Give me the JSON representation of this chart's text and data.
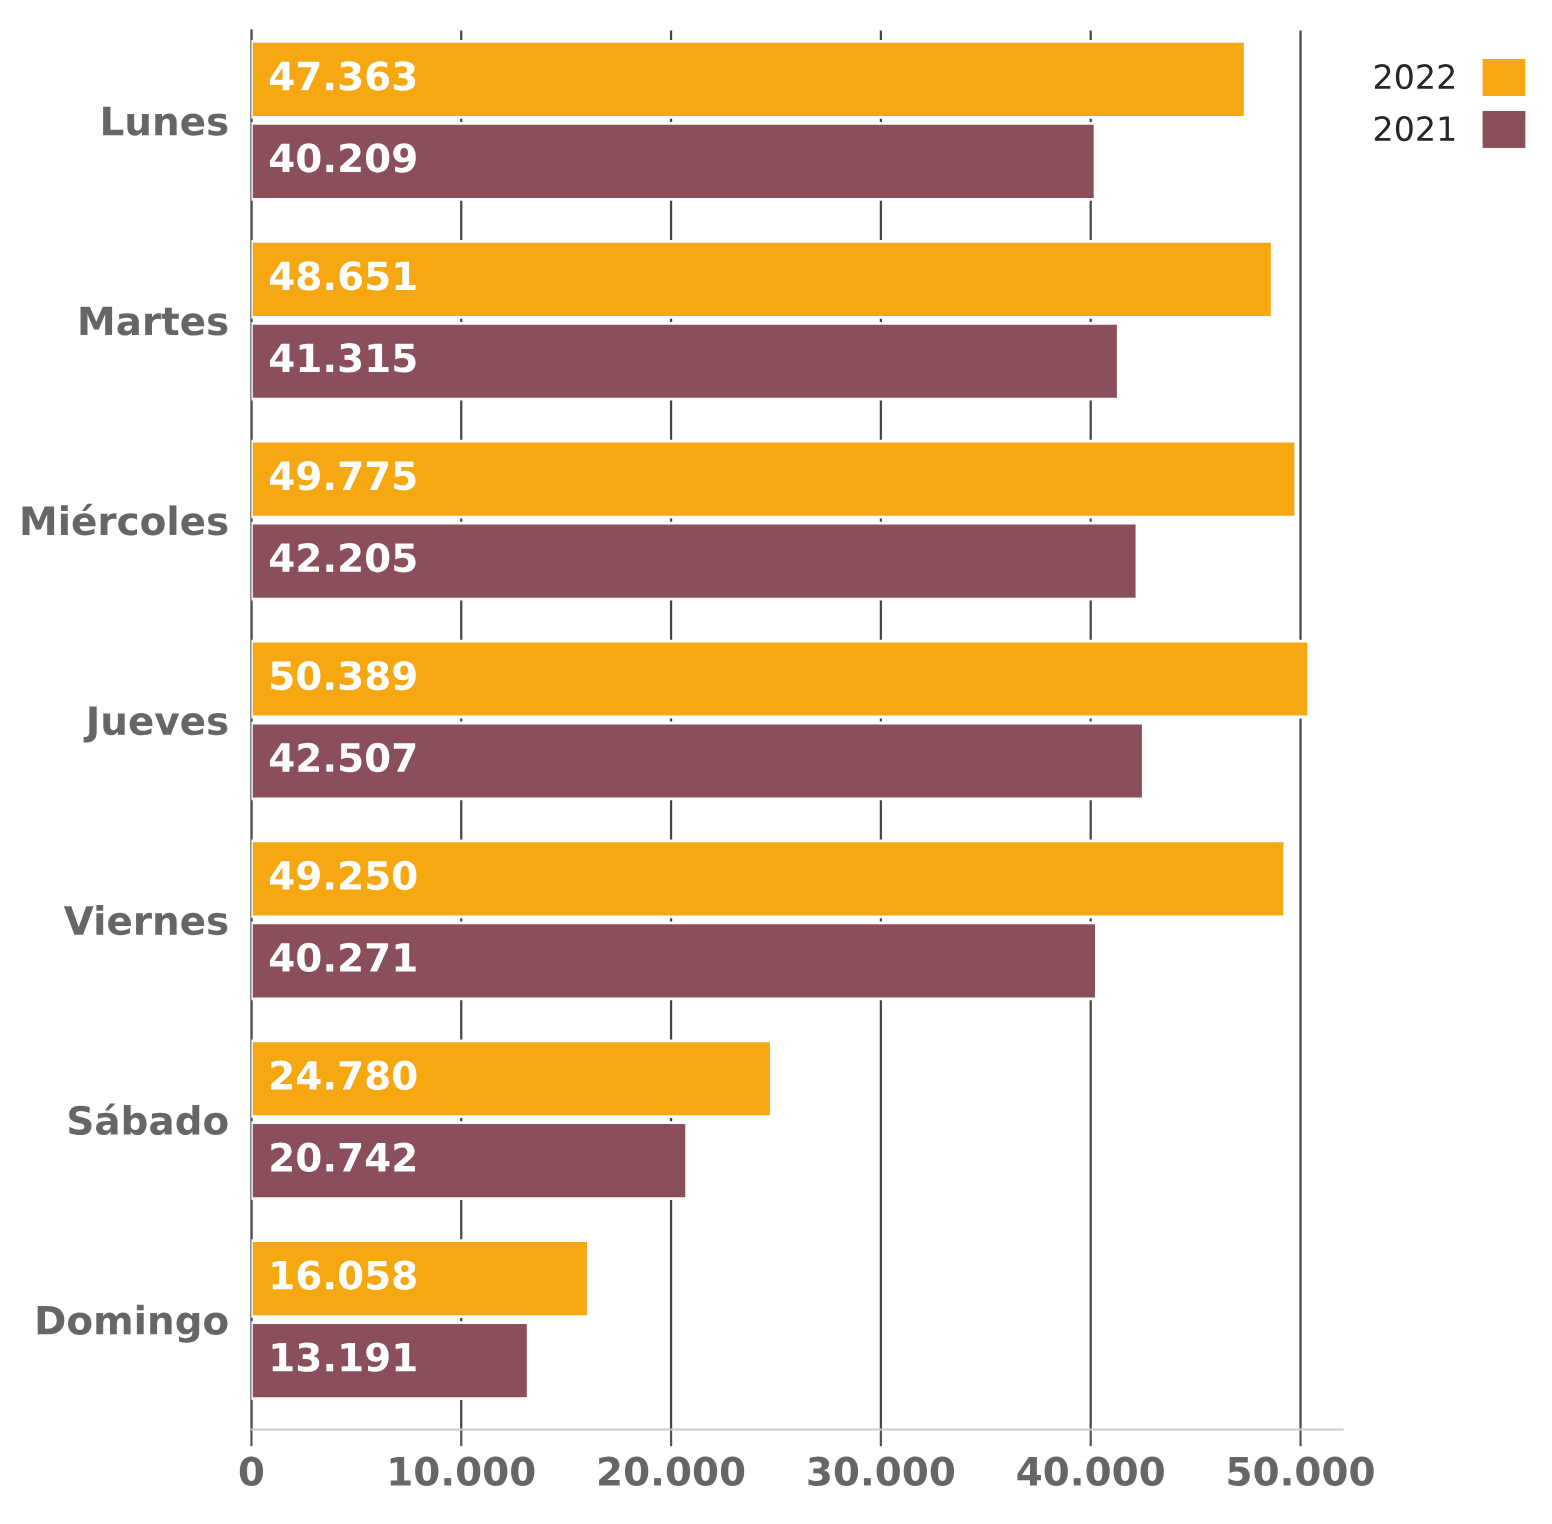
{
  "chart_data": {
    "type": "bar",
    "orientation": "horizontal",
    "categories": [
      "Lunes",
      "Martes",
      "Miércoles",
      "Jueves",
      "Viernes",
      "Sábado",
      "Domingo"
    ],
    "series": [
      {
        "name": "2022",
        "color": "#f5a811",
        "values": [
          47363,
          48651,
          49775,
          50389,
          49250,
          24780,
          16058
        ],
        "value_labels": [
          "47.363",
          "48.651",
          "49.775",
          "50.389",
          "49.250",
          "24.780",
          "16.058"
        ]
      },
      {
        "name": "2021",
        "color": "#8b4f5c",
        "values": [
          40209,
          41315,
          42205,
          42507,
          40271,
          20742,
          13191
        ],
        "value_labels": [
          "40.209",
          "41.315",
          "42.205",
          "42.507",
          "40.271",
          "20.742",
          "13.191"
        ]
      }
    ],
    "xlim": [
      0,
      52000
    ],
    "xticks": [
      0,
      {
        "value": 10000,
        "label": "10.000"
      },
      {
        "value": 20000,
        "label": "20.000"
      },
      {
        "value": 30000,
        "label": "30.000"
      },
      {
        "value": 40000,
        "label": "40.000"
      },
      {
        "value": 50000,
        "label": "50.000"
      }
    ],
    "grid": "x",
    "legend": "top right"
  }
}
